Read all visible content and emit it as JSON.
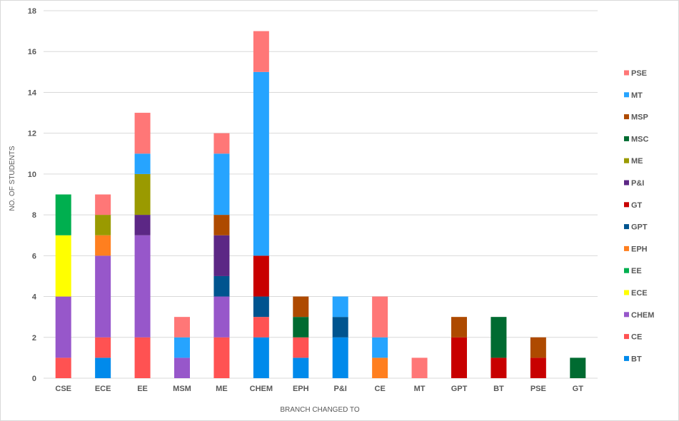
{
  "chart_data": {
    "type": "bar",
    "stacked": true,
    "title": "",
    "xlabel": "BRANCH CHANGED TO",
    "ylabel": "NO. OF STUDENTS",
    "ylim": [
      0,
      18
    ],
    "yticks": [
      0,
      2,
      4,
      6,
      8,
      10,
      12,
      14,
      16,
      18
    ],
    "grid": true,
    "legend_position": "right",
    "categories": [
      "CSE",
      "ECE",
      "EE",
      "MSM",
      "ME",
      "CHEM",
      "EPH",
      "P&I",
      "CE",
      "MT",
      "GPT",
      "BT",
      "PSE",
      "GT"
    ],
    "series": [
      {
        "name": "BT",
        "color": "#008AEB",
        "values": [
          0,
          1,
          0,
          0,
          0,
          2,
          1,
          2,
          0,
          0,
          0,
          0,
          0,
          0
        ]
      },
      {
        "name": "CE",
        "color": "#FF5252",
        "values": [
          1,
          1,
          2,
          0,
          2,
          1,
          1,
          0,
          0,
          0,
          0,
          0,
          0,
          0
        ]
      },
      {
        "name": "CHEM",
        "color": "#9757CA",
        "values": [
          3,
          4,
          5,
          1,
          2,
          0,
          0,
          0,
          0,
          0,
          0,
          0,
          0,
          0
        ]
      },
      {
        "name": "ECE",
        "color": "#FFFF00",
        "values": [
          3,
          0,
          0,
          0,
          0,
          0,
          0,
          0,
          0,
          0,
          0,
          0,
          0,
          0
        ]
      },
      {
        "name": "EE",
        "color": "#00AF4F",
        "values": [
          2,
          0,
          0,
          0,
          0,
          0,
          0,
          0,
          0,
          0,
          0,
          0,
          0,
          0
        ]
      },
      {
        "name": "EPH",
        "color": "#FF7F1F",
        "values": [
          0,
          1,
          0,
          0,
          0,
          0,
          0,
          0,
          1,
          0,
          0,
          0,
          0,
          0
        ]
      },
      {
        "name": "GPT",
        "color": "#00548F",
        "values": [
          0,
          0,
          0,
          0,
          1,
          1,
          0,
          1,
          0,
          0,
          0,
          0,
          0,
          0
        ]
      },
      {
        "name": "GT",
        "color": "#C80000",
        "values": [
          0,
          0,
          0,
          0,
          0,
          2,
          0,
          0,
          0,
          0,
          2,
          1,
          1,
          0
        ]
      },
      {
        "name": "P&I",
        "color": "#5C2785",
        "values": [
          0,
          0,
          1,
          0,
          2,
          0,
          0,
          0,
          0,
          0,
          0,
          0,
          0,
          0
        ]
      },
      {
        "name": "ME",
        "color": "#9A9A00",
        "values": [
          0,
          1,
          2,
          0,
          0,
          0,
          0,
          0,
          0,
          0,
          0,
          0,
          0,
          0
        ]
      },
      {
        "name": "MSC",
        "color": "#006B31",
        "values": [
          0,
          0,
          0,
          0,
          0,
          0,
          1,
          0,
          0,
          0,
          0,
          2,
          0,
          1
        ]
      },
      {
        "name": "MSP",
        "color": "#AE4A00",
        "values": [
          0,
          0,
          0,
          0,
          1,
          0,
          1,
          0,
          0,
          0,
          1,
          0,
          1,
          0
        ]
      },
      {
        "name": "MT",
        "color": "#26A4FF",
        "values": [
          0,
          0,
          1,
          1,
          3,
          9,
          0,
          1,
          1,
          0,
          0,
          0,
          0,
          0
        ]
      },
      {
        "name": "PSE",
        "color": "#FF7777",
        "values": [
          0,
          1,
          2,
          1,
          1,
          2,
          0,
          0,
          2,
          1,
          0,
          0,
          0,
          0
        ]
      }
    ]
  }
}
